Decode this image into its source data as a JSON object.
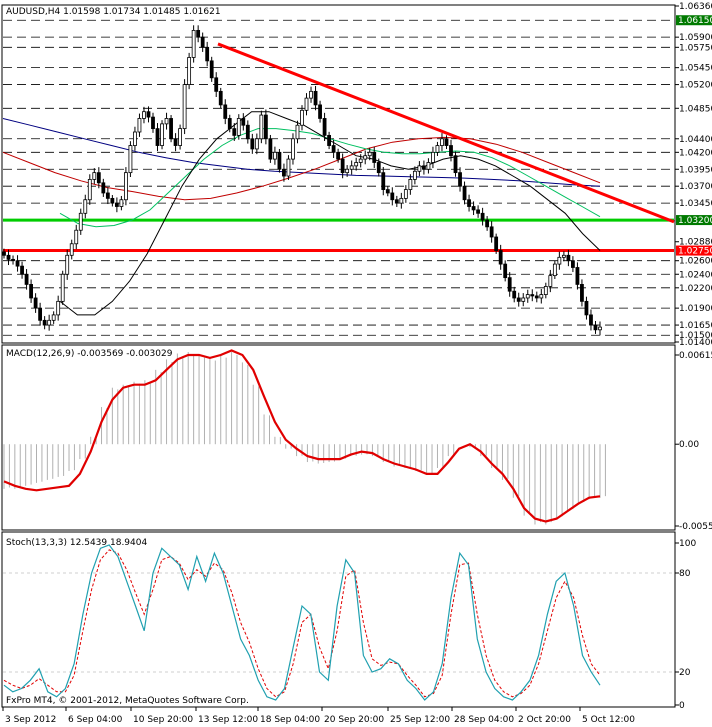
{
  "window": {
    "symbol_header": "AUDUSD,H4  1.01598 1.01734 1.01485 1.01621",
    "copyright": "FxPro MT4, © 2001-2012, MetaQuotes Software Corp."
  },
  "chart_data": [
    {
      "type": "candlestick",
      "title": "AUDUSD,H4",
      "ohlc_last": {
        "open": 1.01598,
        "high": 1.01734,
        "low": 1.01485,
        "close": 1.01621
      },
      "ylim": [
        1.014,
        1.0636
      ],
      "price_labels": [
        "1.06360",
        "1.06150",
        "1.05900",
        "1.05750",
        "1.05450",
        "1.05200",
        "1.04850",
        "1.04400",
        "1.04200",
        "1.03950",
        "1.03700",
        "1.03450",
        "1.03200",
        "1.02880",
        "1.02750",
        "1.02600",
        "1.02400",
        "1.02200",
        "1.01900",
        "1.01650",
        "1.01500",
        "1.01400"
      ],
      "highlighted_labels": {
        "1.06150": "#007a00",
        "1.03200": "#007a00",
        "1.02750": "#ff0000"
      },
      "horizontal_levels": [
        1.0615,
        1.059,
        1.0575,
        1.0545,
        1.052,
        1.0485,
        1.044,
        1.042,
        1.0395,
        1.037,
        1.0345,
        1.032,
        1.0275,
        1.026,
        1.024,
        1.022,
        1.019,
        1.0165,
        1.015
      ],
      "support_line": {
        "price": 1.032,
        "color": "#00cc00"
      },
      "resistance_line": {
        "price": 1.0275,
        "color": "#ff0000"
      },
      "trendline": {
        "from_label": "13 Sep 12:00",
        "from_price": 1.058,
        "to_label": "5 Oct 12:00",
        "to_price": 1.036,
        "color": "#ff0000"
      },
      "close_path": [
        1.0268,
        1.0262,
        1.026,
        1.0252,
        1.024,
        1.0225,
        1.0205,
        1.019,
        1.0172,
        1.0165,
        1.0172,
        1.018,
        1.02,
        1.024,
        1.0268,
        1.0285,
        1.0305,
        1.033,
        1.035,
        1.038,
        1.039,
        1.0375,
        1.036,
        1.0352,
        1.0345,
        1.034,
        1.035,
        1.039,
        1.043,
        1.045,
        1.047,
        1.048,
        1.0472,
        1.0455,
        1.043,
        1.0462,
        1.047,
        1.044,
        1.043,
        1.0455,
        1.052,
        1.056,
        1.06,
        1.059,
        1.0575,
        1.0555,
        1.053,
        1.051,
        1.049,
        1.047,
        1.0455,
        1.0445,
        1.047,
        1.046,
        1.044,
        1.0425,
        1.044,
        1.0475,
        1.044,
        1.041,
        1.042,
        1.0395,
        1.0385,
        1.041,
        1.044,
        1.046,
        1.0482,
        1.05,
        1.051,
        1.049,
        1.047,
        1.0445,
        1.043,
        1.042,
        1.041,
        1.039,
        1.0395,
        1.04,
        1.0405,
        1.041,
        1.0415,
        1.042,
        1.0405,
        1.039,
        1.0365,
        1.036,
        1.035,
        1.0345,
        1.0352,
        1.0365,
        1.038,
        1.0392,
        1.04,
        1.0395,
        1.0405,
        1.042,
        1.043,
        1.044,
        1.043,
        1.0415,
        1.039,
        1.037,
        1.035,
        1.034,
        1.0335,
        1.033,
        1.032,
        1.031,
        1.0295,
        1.0275,
        1.0255,
        1.0235,
        1.0215,
        1.0205,
        1.02,
        1.0205,
        1.021,
        1.0208,
        1.0205,
        1.021,
        1.0222,
        1.0238,
        1.0255,
        1.0265,
        1.0268,
        1.026,
        1.025,
        1.0225,
        1.02,
        1.018,
        1.0165,
        1.0158,
        1.0162
      ],
      "ma_fast": {
        "color": "#000000",
        "values": [
          1.02,
          1.018,
          1.018,
          1.02,
          1.023,
          1.027,
          1.032,
          1.037,
          1.041,
          1.044,
          1.046,
          1.048,
          1.048,
          1.047,
          1.046,
          1.0445,
          1.043,
          1.0415,
          1.041,
          1.04,
          1.0395,
          1.04,
          1.041,
          1.0415,
          1.041,
          1.04,
          1.0385,
          1.037,
          1.035,
          1.033,
          1.03,
          1.0275
        ]
      },
      "ma_mid": {
        "color": "#00c060",
        "values": [
          1.033,
          1.0315,
          1.031,
          1.0312,
          1.032,
          1.0335,
          1.036,
          1.0385,
          1.041,
          1.043,
          1.0445,
          1.0455,
          1.0455,
          1.0452,
          1.0448,
          1.044,
          1.0432,
          1.0425,
          1.042,
          1.0418,
          1.0418,
          1.042,
          1.0422,
          1.042,
          1.0412,
          1.04,
          1.0385,
          1.037,
          1.0355,
          1.034,
          1.0325
        ]
      },
      "ma_slow_red": {
        "color": "#c00000",
        "values": [
          1.042,
          1.0405,
          1.039,
          1.0378,
          1.0368,
          1.0362,
          1.0355,
          1.035,
          1.0352,
          1.036,
          1.037,
          1.0382,
          1.0395,
          1.041,
          1.0425,
          1.0435,
          1.044,
          1.0442,
          1.044,
          1.0432,
          1.042,
          1.0405,
          1.039,
          1.0375
        ]
      },
      "ma_slow_blue": {
        "color": "#000080",
        "values": [
          1.047,
          1.046,
          1.045,
          1.044,
          1.043,
          1.042,
          1.0412,
          1.0405,
          1.04,
          1.0395,
          1.0392,
          1.039,
          1.0388,
          1.0386,
          1.0385,
          1.0384,
          1.0383,
          1.0382,
          1.038,
          1.0378,
          1.0375,
          1.0372,
          1.037
        ]
      }
    },
    {
      "type": "macd",
      "title": "MACD(12,26,9) -0.003569 -0.003029",
      "ylim": [
        -0.0055,
        0.0062
      ],
      "y_labels": [
        "0.00615",
        "0.00",
        "-0.00550"
      ],
      "signal_color": "#e00000",
      "histogram_color": "#b0b0b0",
      "signal": [
        -0.0025,
        -0.0028,
        -0.003,
        -0.0031,
        -0.003,
        -0.0029,
        -0.0028,
        -0.002,
        -0.0005,
        0.0015,
        0.003,
        0.0038,
        0.004,
        0.004,
        0.0043,
        0.005,
        0.0057,
        0.006,
        0.006,
        0.0058,
        0.006,
        0.0063,
        0.006,
        0.005,
        0.0032,
        0.0015,
        0.0003,
        -0.0003,
        -0.0008,
        -0.001,
        -0.001,
        -0.001,
        -0.0007,
        -0.0005,
        -0.0006,
        -0.001,
        -0.0013,
        -0.0015,
        -0.0017,
        -0.002,
        -0.002,
        -0.0012,
        -0.0003,
        0.0,
        -0.0005,
        -0.0013,
        -0.002,
        -0.003,
        -0.0043,
        -0.005,
        -0.0052,
        -0.005,
        -0.0045,
        -0.004,
        -0.0036,
        -0.0035
      ],
      "histogram": [
        -0.003,
        -0.003,
        -0.0028,
        -0.0026,
        -0.0024,
        -0.0022,
        -0.0018,
        -0.001,
        0.0005,
        0.0025,
        0.0038,
        0.004,
        0.0042,
        0.0043,
        0.005,
        0.0057,
        0.0061,
        0.0062,
        0.006,
        0.0058,
        0.006,
        0.0062,
        0.0055,
        0.004,
        0.002,
        0.0005,
        -0.0003,
        -0.0008,
        -0.0012,
        -0.0013,
        -0.0012,
        -0.001,
        -0.0008,
        -0.0007,
        -0.0008,
        -0.0012,
        -0.0015,
        -0.0016,
        -0.0018,
        -0.002,
        -0.0016,
        -0.0008,
        0.0,
        -0.0002,
        -0.0008,
        -0.0016,
        -0.0024,
        -0.0036,
        -0.0048,
        -0.0054,
        -0.0054,
        -0.005,
        -0.0045,
        -0.004,
        -0.0037,
        -0.0036
      ]
    },
    {
      "type": "stochastic",
      "title": "Stoch(13,3,3) 12.5439 18.9404",
      "ylim": [
        0,
        100
      ],
      "y_labels": [
        "100",
        "80",
        "20",
        "0"
      ],
      "main_color": "#20a0b0",
      "signal_color": "#e00000",
      "main": [
        12,
        8,
        10,
        15,
        22,
        8,
        5,
        10,
        25,
        55,
        80,
        95,
        97,
        90,
        75,
        60,
        45,
        80,
        95,
        90,
        85,
        70,
        90,
        75,
        92,
        80,
        60,
        40,
        30,
        15,
        5,
        3,
        10,
        35,
        60,
        55,
        20,
        15,
        60,
        88,
        80,
        30,
        20,
        22,
        28,
        25,
        15,
        10,
        3,
        8,
        25,
        65,
        92,
        85,
        40,
        20,
        10,
        5,
        3,
        8,
        15,
        30,
        55,
        75,
        80,
        60,
        30,
        20,
        12
      ],
      "signal": [
        15,
        12,
        10,
        12,
        16,
        12,
        8,
        8,
        18,
        45,
        70,
        88,
        94,
        92,
        82,
        68,
        55,
        70,
        88,
        90,
        86,
        76,
        82,
        78,
        86,
        82,
        68,
        50,
        38,
        22,
        10,
        5,
        8,
        25,
        50,
        55,
        35,
        22,
        45,
        78,
        82,
        50,
        28,
        24,
        26,
        25,
        18,
        12,
        5,
        7,
        18,
        55,
        85,
        86,
        55,
        30,
        15,
        8,
        5,
        7,
        12,
        25,
        45,
        65,
        75,
        65,
        42,
        25,
        18
      ]
    }
  ],
  "x_axis": {
    "labels": [
      "3 Sep 2012",
      "6 Sep 04:00",
      "10 Sep 20:00",
      "13 Sep 12:00",
      "18 Sep 04:00",
      "20 Sep 20:00",
      "25 Sep 12:00",
      "28 Sep 04:00",
      "2 Oct 20:00",
      "5 Oct 12:00"
    ]
  }
}
